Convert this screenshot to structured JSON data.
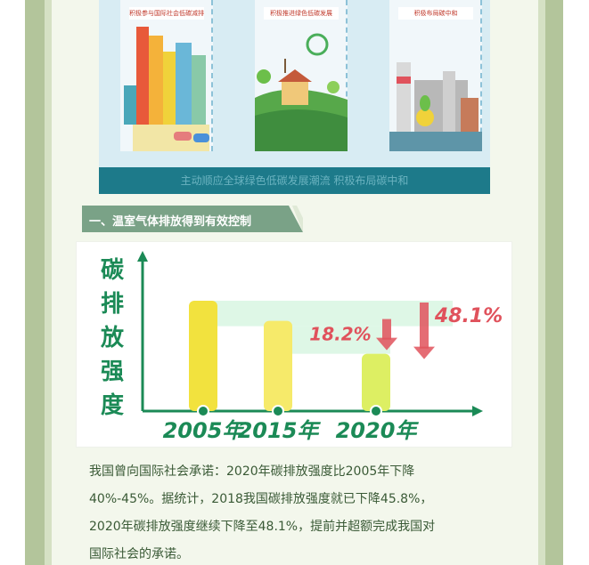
{
  "banner": {
    "panels": [
      {
        "label": "积极参与国际社会低碳减排"
      },
      {
        "label": "积极推进绿色低碳发展"
      },
      {
        "label": "积极布局碳中和"
      }
    ],
    "caption": "主动顺应全球绿色低碳发展潮流 积极布局碳中和"
  },
  "section": {
    "heading": "一、温室气体排放得到有效控制"
  },
  "colors": {
    "frame": "#b3c59b",
    "ribbon": "#7aa287",
    "axis": "#1b8a56",
    "label_red": "#e0525c",
    "text": "#3a5a36"
  },
  "chart_data": {
    "type": "bar",
    "ylabel": "碳排放强度",
    "categories": [
      "2005年",
      "2015年",
      "2020年"
    ],
    "values": [
      100,
      81.8,
      51.9
    ],
    "annotations": [
      {
        "text": "18.2%",
        "from": "2005年",
        "to": "2015年"
      },
      {
        "text": "48.1%",
        "from": "2005年",
        "to": "2020年"
      }
    ],
    "bar_colors": [
      "#f2e23e",
      "#f6ea6a",
      "#ddef63"
    ],
    "grid": false
  },
  "paragraph": {
    "lines": [
      "我国曾向国际社会承诺：2020年碳排放强度比2005年下降",
      "40%-45%。据统计，2018我国碳排放强度就已下降45.8%，",
      "2020年碳排放强度继续下降至48.1%，提前并超额完成我国对",
      "国际社会的承诺。"
    ]
  }
}
